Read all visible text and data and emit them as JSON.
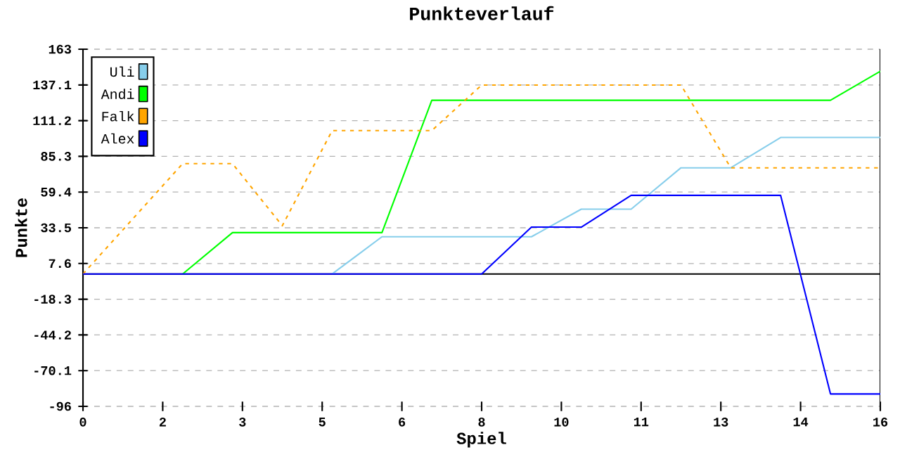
{
  "chart_data": {
    "type": "line",
    "title": "Punkteverlauf",
    "xlabel": "Spiel",
    "ylabel": "Punkte",
    "xlim": [
      0,
      16
    ],
    "ylim": [
      -96,
      163
    ],
    "xticks": [
      0,
      {
        "value": 1.6,
        "label": "2"
      },
      {
        "value": 3.2,
        "label": "3"
      },
      {
        "value": 4.8,
        "label": "5"
      },
      {
        "value": 6.4,
        "label": "6"
      },
      8,
      {
        "value": 9.6,
        "label": "10"
      },
      {
        "value": 11.2,
        "label": "11"
      },
      {
        "value": 12.8,
        "label": "13"
      },
      {
        "value": 14.4,
        "label": "14"
      },
      16
    ],
    "yticks": [
      -96,
      -70.1,
      -44.2,
      -18.3,
      7.6,
      33.5,
      59.4,
      85.3,
      111.2,
      137.1,
      163
    ],
    "x": [
      0,
      1,
      2,
      3,
      4,
      5,
      6,
      7,
      8,
      9,
      10,
      11,
      12,
      13,
      14,
      15,
      16
    ],
    "series": [
      {
        "name": "Uli",
        "color": "#87ceeb",
        "line_style": "solid",
        "values": [
          null,
          null,
          null,
          null,
          null,
          0,
          27,
          27,
          27,
          27,
          47,
          47,
          77,
          77,
          99,
          99,
          99
        ]
      },
      {
        "name": "Andi",
        "color": "#00ff00",
        "line_style": "solid",
        "values": [
          null,
          null,
          0,
          30,
          30,
          30,
          30,
          126,
          126,
          126,
          126,
          126,
          126,
          126,
          126,
          126,
          147
        ]
      },
      {
        "name": "Falk",
        "color": "#ffa500",
        "line_style": "dotted",
        "values": [
          0,
          40,
          80,
          80,
          35,
          104,
          104,
          104,
          137,
          137,
          137,
          137,
          137,
          77,
          77,
          77,
          77
        ]
      },
      {
        "name": "Alex",
        "color": "#0000ff",
        "line_style": "solid",
        "values": [
          0,
          0,
          0,
          0,
          0,
          0,
          0,
          0,
          0,
          34,
          34,
          57,
          57,
          57,
          57,
          -87,
          -87
        ]
      }
    ],
    "grid": "y",
    "legend": "top left",
    "ref_lines": [
      {
        "axis": "y",
        "value": 0,
        "color": "#000000"
      }
    ]
  }
}
